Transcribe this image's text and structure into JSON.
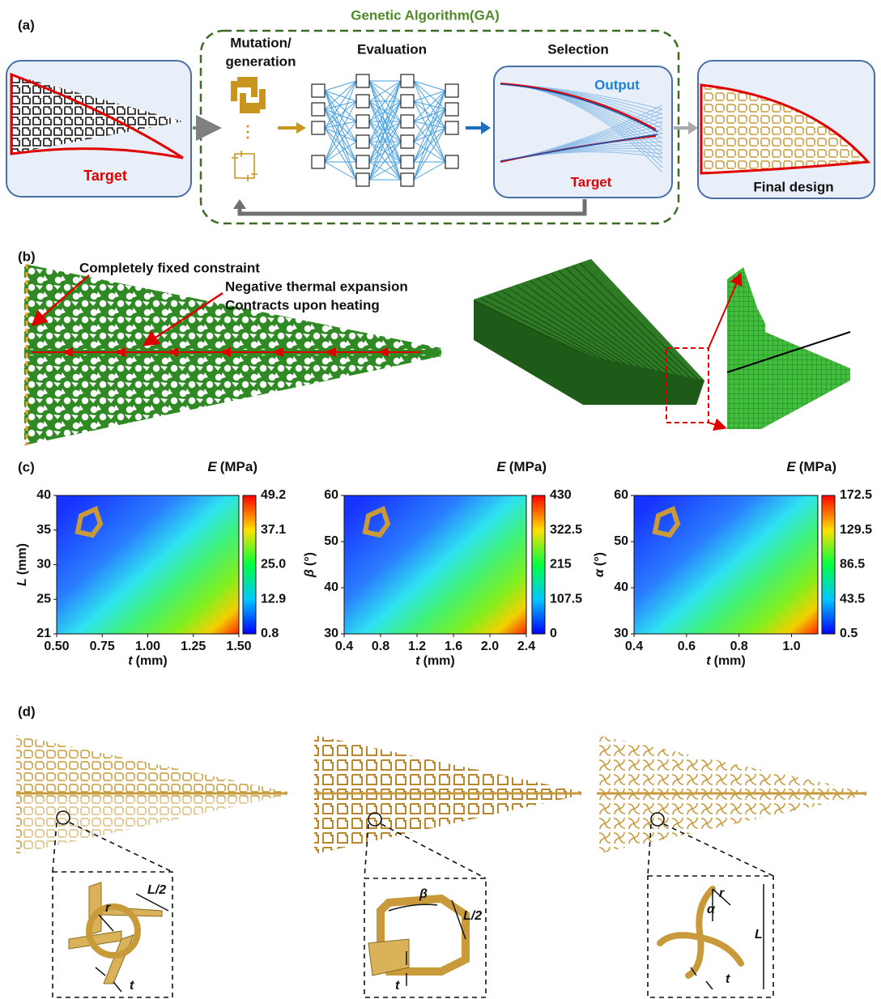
{
  "panel_a": {
    "label": "(a)",
    "ga_title": "Genetic Algorithm(GA)",
    "input_label": "Target",
    "mutation": [
      "Mutation/",
      "generation"
    ],
    "evaluation": "Evaluation",
    "selection": "Selection",
    "output_label": "Output",
    "target_label": "Target",
    "final_design": "Final design"
  },
  "panel_b": {
    "label": "(b)",
    "annotations": [
      "Completely fixed constraint",
      "Negative thermal expansion",
      "Contracts upon heating"
    ]
  },
  "panel_c": {
    "label": "(c)",
    "maps": [
      {
        "y_symbol": "L",
        "y_unit": "(mm)",
        "x_symbol": "t",
        "x_unit": "(mm)",
        "cbar_symbol": "E",
        "cbar_unit": "(MPa)",
        "yticks": [
          "40",
          "35",
          "30",
          "25",
          "21"
        ],
        "xticks": [
          "0.50",
          "0.75",
          "1.00",
          "1.25",
          "1.50"
        ],
        "cbar_ticks": [
          "49.2",
          "37.1",
          "25.0",
          "12.9",
          "0.8"
        ]
      },
      {
        "y_symbol": "β",
        "y_unit": "(°)",
        "x_symbol": "t",
        "x_unit": "(mm)",
        "cbar_symbol": "E",
        "cbar_unit": "(MPa)",
        "yticks": [
          "60",
          "50",
          "40",
          "30"
        ],
        "xticks": [
          "0.4",
          "0.8",
          "1.2",
          "1.6",
          "2.0",
          "2.4"
        ],
        "cbar_ticks": [
          "430",
          "322.5",
          "215",
          "107.5",
          "0"
        ]
      },
      {
        "y_symbol": "α",
        "y_unit": "(°)",
        "x_symbol": "t",
        "x_unit": "(mm)",
        "cbar_symbol": "E",
        "cbar_unit": "(MPa)",
        "yticks": [
          "60",
          "50",
          "40",
          "30"
        ],
        "xticks": [
          "0.4",
          "0.6",
          "0.8",
          "1.0"
        ],
        "cbar_ticks": [
          "172.5",
          "129.5",
          "86.5",
          "43.5",
          "0.5"
        ]
      }
    ]
  },
  "panel_d": {
    "label": "(d)",
    "insets": [
      {
        "labels": [
          "L/2",
          "r",
          "t"
        ]
      },
      {
        "labels": [
          "β",
          "L/2",
          "t"
        ]
      },
      {
        "labels": [
          "r",
          "α",
          "L",
          "t"
        ]
      }
    ]
  }
}
